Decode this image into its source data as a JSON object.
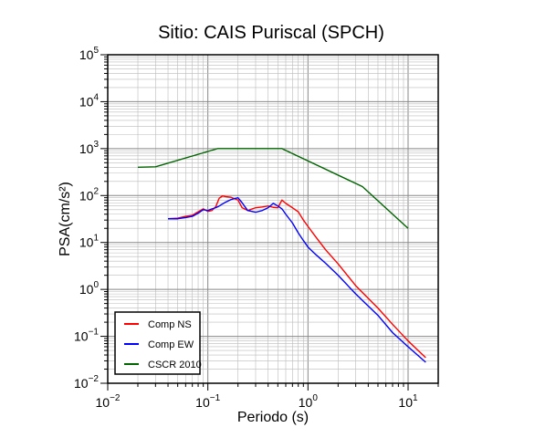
{
  "chart_data": {
    "type": "line",
    "title": "Sitio: CAIS Puriscal (SPCH)",
    "xlabel": "Periodo (s)",
    "ylabel": "PSA(cm/s²)",
    "x_scale": "log",
    "y_scale": "log",
    "xlim": [
      0.01,
      20
    ],
    "ylim": [
      0.01,
      100000
    ],
    "grid": true,
    "legend_position": "bottom-left",
    "x_tick_labels": [
      {
        "value": 0.01,
        "base": "10",
        "exp": "−2"
      },
      {
        "value": 0.1,
        "base": "10",
        "exp": "−1"
      },
      {
        "value": 1,
        "base": "10",
        "exp": "0"
      },
      {
        "value": 10,
        "base": "10",
        "exp": "1"
      }
    ],
    "y_tick_labels": [
      {
        "value": 0.01,
        "base": "10",
        "exp": "−2"
      },
      {
        "value": 0.1,
        "base": "10",
        "exp": "−1"
      },
      {
        "value": 1,
        "base": "10",
        "exp": "0"
      },
      {
        "value": 10,
        "base": "10",
        "exp": "1"
      },
      {
        "value": 100,
        "base": "10",
        "exp": "2"
      },
      {
        "value": 1000,
        "base": "10",
        "exp": "3"
      },
      {
        "value": 10000,
        "base": "10",
        "exp": "4"
      },
      {
        "value": 100000,
        "base": "10",
        "exp": "5"
      }
    ],
    "series": [
      {
        "name": "Comp NS",
        "color": "#ff0000",
        "x": [
          0.04,
          0.05,
          0.06,
          0.07,
          0.08,
          0.09,
          0.1,
          0.11,
          0.12,
          0.13,
          0.14,
          0.15,
          0.17,
          0.2,
          0.22,
          0.25,
          0.3,
          0.35,
          0.4,
          0.45,
          0.5,
          0.55,
          0.6,
          0.7,
          0.8,
          0.9,
          1.0,
          1.2,
          1.5,
          2.0,
          3.0,
          5.0,
          7.0,
          10.0,
          15.0
        ],
        "y": [
          32,
          33,
          36,
          38,
          45,
          52,
          46,
          48,
          58,
          88,
          98,
          95,
          92,
          80,
          55,
          48,
          55,
          57,
          60,
          56,
          55,
          80,
          68,
          55,
          45,
          30,
          22,
          13,
          7,
          3.5,
          1.2,
          0.4,
          0.18,
          0.08,
          0.035
        ]
      },
      {
        "name": "Comp EW",
        "color": "#0000ff",
        "x": [
          0.04,
          0.05,
          0.06,
          0.07,
          0.08,
          0.09,
          0.1,
          0.11,
          0.12,
          0.13,
          0.14,
          0.15,
          0.17,
          0.2,
          0.22,
          0.25,
          0.3,
          0.35,
          0.4,
          0.45,
          0.5,
          0.55,
          0.6,
          0.7,
          0.8,
          0.9,
          1.0,
          1.2,
          1.5,
          2.0,
          3.0,
          5.0,
          7.0,
          10.0,
          15.0
        ],
        "y": [
          32,
          32,
          34,
          36,
          42,
          50,
          48,
          52,
          55,
          60,
          66,
          72,
          82,
          90,
          70,
          48,
          44,
          48,
          55,
          68,
          60,
          52,
          40,
          26,
          16,
          11,
          8,
          5.5,
          3.6,
          2.0,
          0.8,
          0.28,
          0.12,
          0.06,
          0.028
        ]
      },
      {
        "name": "CSCR 2010",
        "color": "#006400",
        "x": [
          0.02,
          0.03,
          0.125,
          0.55,
          3.5,
          10.0
        ],
        "y": [
          400,
          410,
          1000,
          1000,
          155,
          20
        ]
      }
    ]
  }
}
